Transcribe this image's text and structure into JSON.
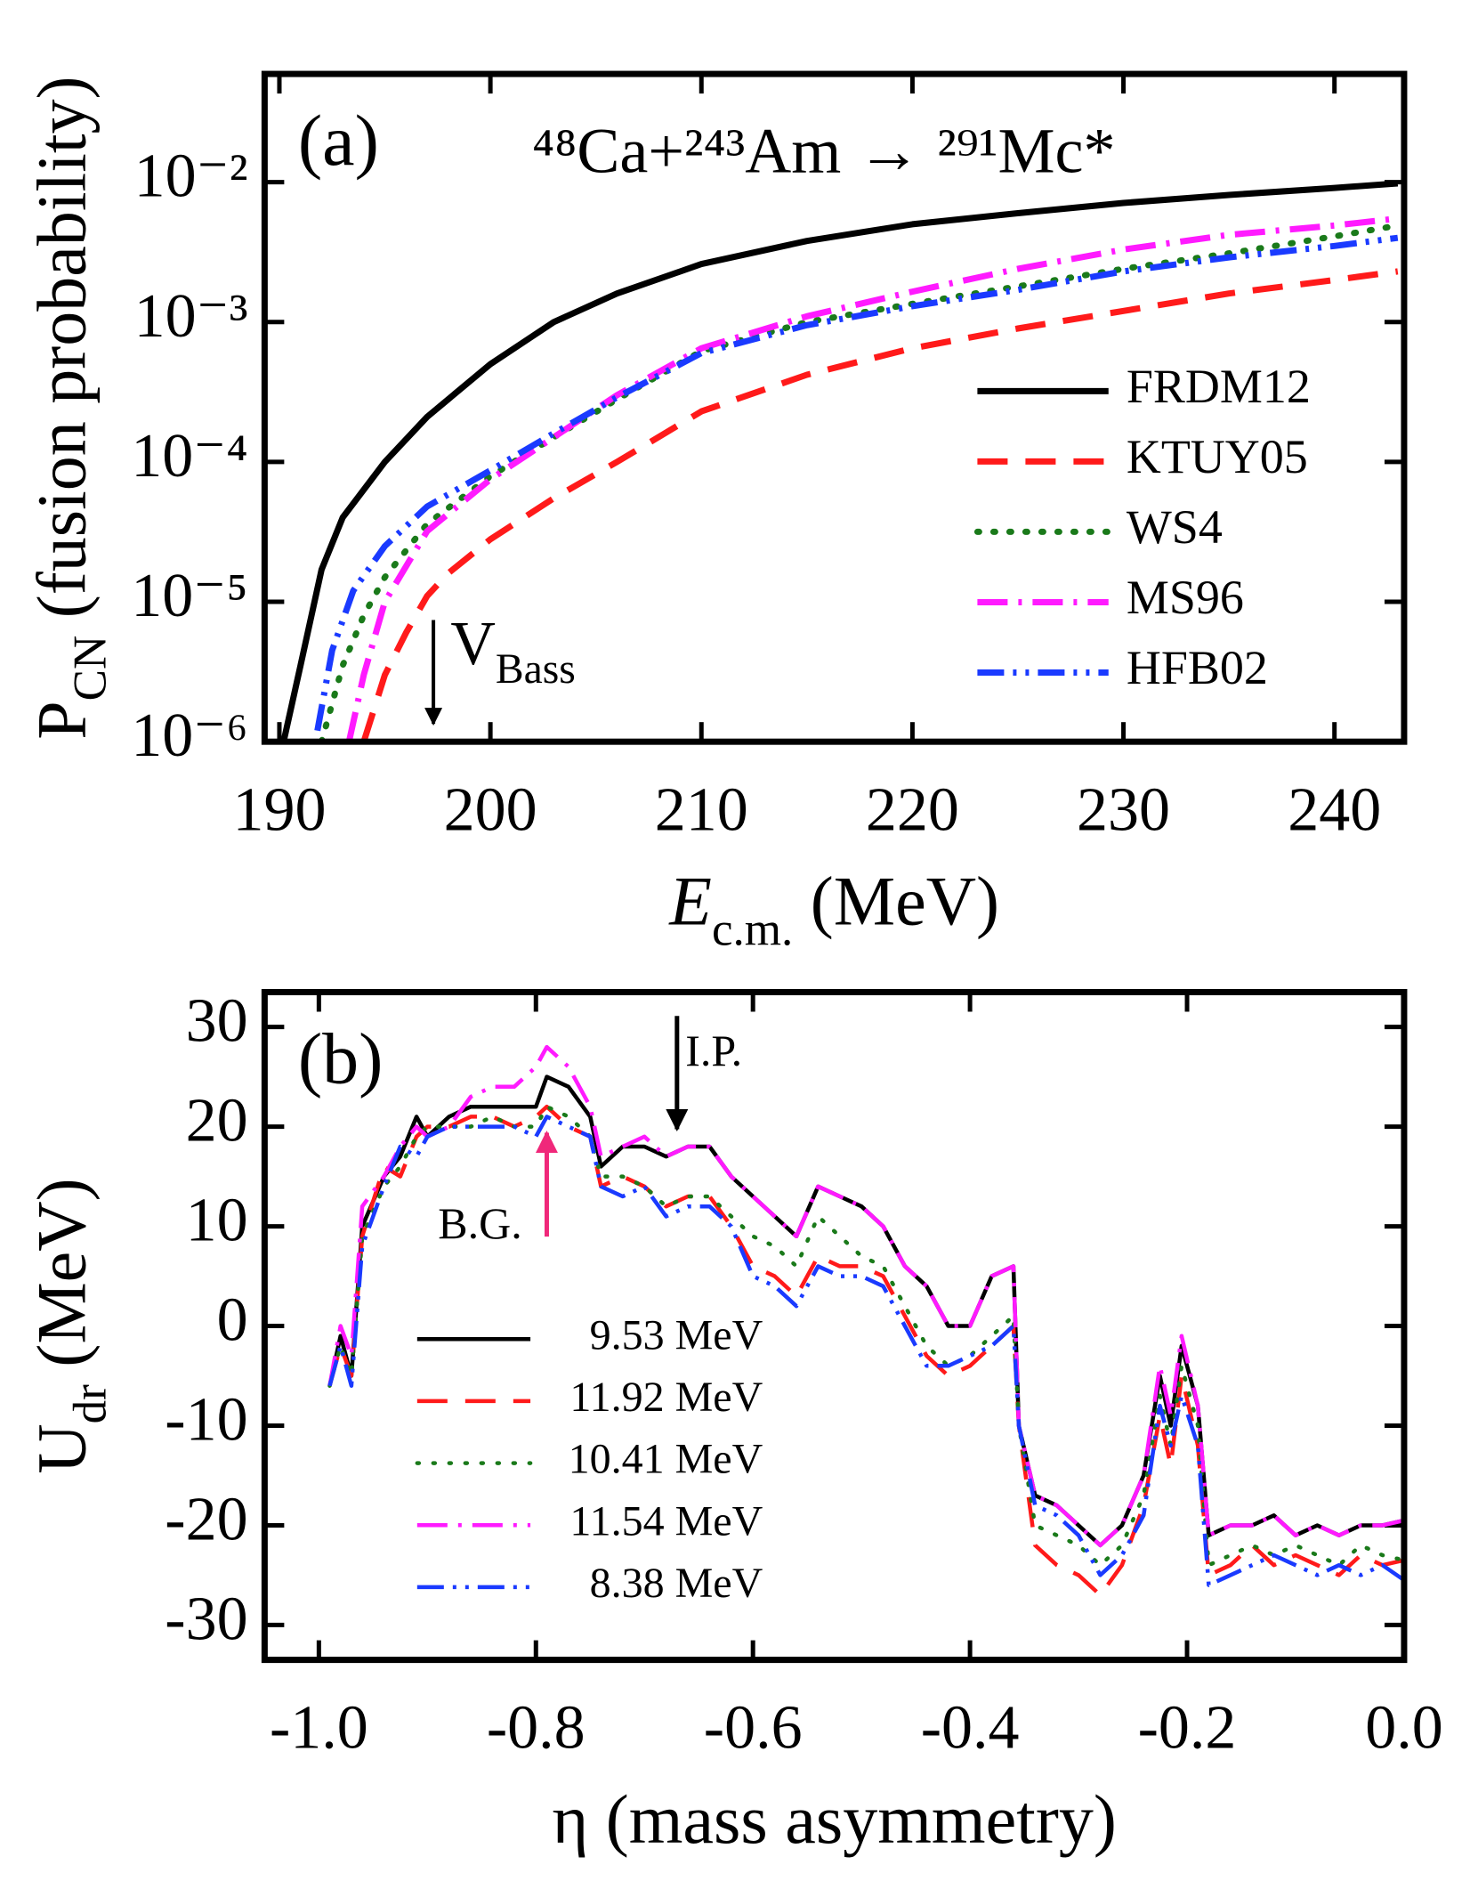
{
  "chart_data": [
    {
      "type": "line",
      "log_y": true,
      "panel_label": "(a)",
      "title": "⁴⁸Ca+²⁴³Am → ²⁹¹Mc*",
      "xlabel": [
        {
          "text": "E",
          "italic": true
        },
        {
          "text": "c.m.",
          "sub": true
        },
        {
          "text": " (MeV)"
        }
      ],
      "ylabel": [
        {
          "text": "P"
        },
        {
          "text": "CN",
          "sub": true
        },
        {
          "text": "  (fusion probability)"
        }
      ],
      "xlim": [
        189.3,
        243.3
      ],
      "xticks": [
        190,
        200,
        210,
        220,
        230,
        240
      ],
      "ylim": [
        1e-06,
        0.0594
      ],
      "yticks": [
        {
          "value": 1e-06,
          "label": "10⁻⁶"
        },
        {
          "value": 1e-05,
          "label": "10⁻⁵"
        },
        {
          "value": 0.0001,
          "label": "10⁻⁴"
        },
        {
          "value": 0.001,
          "label": "10⁻³"
        },
        {
          "value": 0.01,
          "label": "10⁻²"
        }
      ],
      "legend": "lower right",
      "annotations": [
        {
          "parts": [
            {
              "text": "V"
            },
            {
              "text": "Bass",
              "sub": true
            }
          ],
          "x": 197.3,
          "color": "#000000"
        }
      ],
      "series": [
        {
          "name": "FRDM12",
          "color": "#000000",
          "line_style": "solid",
          "x": [
            190.2,
            191,
            192,
            193,
            195,
            197,
            200,
            203,
            206,
            210,
            215,
            220,
            225,
            230,
            235,
            240,
            243
          ],
          "values": [
            1e-06,
            3.5e-06,
            1.7e-05,
            4e-05,
            0.0001,
            0.00021,
            0.0005,
            0.001,
            0.0016,
            0.0026,
            0.0038,
            0.005,
            0.006,
            0.0071,
            0.0081,
            0.0091,
            0.0098
          ]
        },
        {
          "name": "KTUY05",
          "color": "#ff1a1a",
          "line_style": "dashed",
          "x": [
            194,
            195,
            196,
            197,
            198,
            200,
            203,
            206,
            210,
            215,
            220,
            225,
            230,
            235,
            240,
            243
          ],
          "values": [
            1e-06,
            3e-06,
            6e-06,
            1.1e-05,
            1.6e-05,
            2.8e-05,
            5.5e-05,
            0.0001,
            0.00023,
            0.00042,
            0.00065,
            0.0009,
            0.0012,
            0.0016,
            0.002,
            0.0023
          ]
        },
        {
          "name": "WS4",
          "color": "#1a7a1a",
          "line_style": "dotted",
          "x": [
            192,
            193,
            194,
            195,
            197,
            200,
            203,
            206,
            210,
            215,
            220,
            225,
            230,
            235,
            240,
            243
          ],
          "values": [
            1e-06,
            3.5e-06,
            8e-06,
            1.5e-05,
            3.6e-05,
            7.9e-05,
            0.00015,
            0.00028,
            0.00062,
            0.001,
            0.00135,
            0.0018,
            0.0024,
            0.0031,
            0.0041,
            0.0049
          ]
        },
        {
          "name": "MS96",
          "color": "#ff1aff",
          "line_style": "dashdot",
          "x": [
            193.3,
            194,
            195,
            197,
            200,
            203,
            206,
            210,
            215,
            220,
            225,
            230,
            235,
            240,
            243
          ],
          "values": [
            1e-06,
            3e-06,
            1e-05,
            3.2e-05,
            7.5e-05,
            0.00015,
            0.0003,
            0.00065,
            0.0011,
            0.00165,
            0.0024,
            0.0033,
            0.0042,
            0.0049,
            0.0055
          ]
        },
        {
          "name": "HFB02",
          "color": "#1a3aff",
          "line_style": "dashdotdot",
          "x": [
            191.8,
            192.5,
            193.5,
            195,
            197,
            200,
            203,
            206,
            210,
            215,
            220,
            225,
            230,
            235,
            240,
            243
          ],
          "values": [
            1.2e-06,
            4.5e-06,
            1.2e-05,
            2.5e-05,
            4.8e-05,
            8.7e-05,
            0.00016,
            0.00029,
            0.0006,
            0.00095,
            0.0013,
            0.0017,
            0.0023,
            0.0029,
            0.0035,
            0.004
          ]
        }
      ]
    },
    {
      "type": "line",
      "panel_label": "(b)",
      "xlabel": [
        {
          "text": "η (mass asymmetry)"
        }
      ],
      "ylabel": [
        {
          "text": "U"
        },
        {
          "text": "dr",
          "sub": true
        },
        {
          "text": " (MeV)"
        }
      ],
      "xlim": [
        -1.05,
        0
      ],
      "xticks": [
        {
          "value": -1,
          "label": "-1.0"
        },
        -0.8,
        -0.6,
        -0.4,
        -0.2,
        {
          "value": 0,
          "label": "0.0"
        }
      ],
      "ylim": [
        -33.5,
        33.5
      ],
      "yticks": [
        -30,
        -20,
        -10,
        0,
        10,
        20,
        30
      ],
      "legend": "lower left",
      "annotations": [
        {
          "text": "I.P.",
          "x": -0.67,
          "color": "#000000"
        },
        {
          "text": "B.G.",
          "x": -0.79,
          "color": "#f0287a"
        }
      ],
      "x": [
        -0.99,
        -0.98,
        -0.97,
        -0.96,
        -0.94,
        -0.925,
        -0.91,
        -0.9,
        -0.88,
        -0.86,
        -0.84,
        -0.82,
        -0.8,
        -0.79,
        -0.77,
        -0.75,
        -0.74,
        -0.72,
        -0.7,
        -0.68,
        -0.66,
        -0.64,
        -0.62,
        -0.6,
        -0.58,
        -0.56,
        -0.54,
        -0.52,
        -0.5,
        -0.48,
        -0.46,
        -0.44,
        -0.42,
        -0.4,
        -0.38,
        -0.36,
        -0.355,
        -0.34,
        -0.32,
        -0.3,
        -0.28,
        -0.26,
        -0.24,
        -0.225,
        -0.215,
        -0.205,
        -0.19,
        -0.18,
        -0.16,
        -0.14,
        -0.12,
        -0.1,
        -0.08,
        -0.06,
        -0.04,
        -0.02,
        0
      ],
      "series": [
        {
          "name": "9.53 MeV",
          "color": "#000000",
          "line_style": "solid",
          "values": [
            -6,
            -1,
            -5,
            10,
            15,
            17,
            21,
            19,
            21,
            22,
            22,
            22,
            22,
            25,
            24,
            21,
            16,
            18,
            18,
            17,
            18,
            18,
            15,
            13,
            11,
            9,
            14,
            13,
            12,
            10,
            6,
            4,
            0,
            0,
            5,
            6,
            -10,
            -17,
            -18,
            -20,
            -22,
            -20,
            -15,
            -5,
            -10,
            -2,
            -8,
            -21,
            -20,
            -20,
            -19,
            -21,
            -20,
            -21,
            -20,
            -20,
            -19.5
          ]
        },
        {
          "name": "11.92 MeV",
          "color": "#ff1a1a",
          "line_style": "dashed",
          "values": [
            -6,
            -2,
            -5,
            9,
            16,
            15,
            19,
            20,
            20,
            21,
            21,
            20,
            21,
            22,
            20,
            19,
            14,
            15,
            14,
            12,
            13,
            13,
            10,
            6,
            5,
            3,
            7,
            6,
            6,
            5,
            1,
            -3,
            -5,
            -4,
            -2,
            0,
            -10,
            -22,
            -24,
            -25,
            -27,
            -24,
            -18,
            -9,
            -14,
            -5,
            -12,
            -25,
            -24,
            -22,
            -24,
            -23,
            -24,
            -25,
            -23,
            -24,
            -23.5
          ]
        },
        {
          "name": "10.41 MeV",
          "color": "#1a7a1a",
          "line_style": "dotted",
          "values": [
            -6,
            -2,
            -5,
            9,
            14,
            16,
            19,
            20,
            20,
            20,
            21,
            20,
            20,
            22,
            21,
            19,
            15,
            15,
            14,
            12,
            13,
            13,
            11,
            9,
            8,
            6,
            11,
            9,
            7,
            6,
            2,
            -2,
            -4,
            -3,
            -1,
            1,
            -10,
            -20,
            -21,
            -22,
            -24,
            -22,
            -17,
            -7,
            -12,
            -4,
            -10,
            -24,
            -23,
            -22,
            -23,
            -22,
            -23,
            -24,
            -22,
            -23,
            -23.5
          ]
        },
        {
          "name": "11.54 MeV",
          "color": "#ff1aff",
          "line_style": "dashdot",
          "values": [
            -6,
            0,
            -3,
            12,
            15,
            18,
            20,
            19,
            20,
            23,
            24,
            24,
            26,
            28,
            26,
            22,
            17,
            18,
            19,
            17,
            18,
            18,
            15,
            13,
            11,
            9,
            14,
            13,
            12,
            10,
            6,
            4,
            0,
            0,
            5,
            6,
            -10,
            -17,
            -18,
            -20,
            -22,
            -20,
            -15,
            -4,
            -9,
            -1,
            -8,
            -21,
            -20,
            -20,
            -19,
            -21,
            -20,
            -21,
            -20,
            -20,
            -19.5
          ]
        },
        {
          "name": "8.38 MeV",
          "color": "#1a3aff",
          "line_style": "dashdotdot",
          "values": [
            -6,
            -2,
            -6,
            8,
            14,
            18,
            17,
            19,
            20,
            20,
            20,
            20,
            19,
            21,
            20,
            19,
            14,
            13,
            14,
            11,
            12,
            12,
            10,
            5,
            4,
            2,
            6,
            5,
            5,
            4,
            0,
            -4,
            -4,
            -3,
            -2,
            0,
            -10,
            -18,
            -19,
            -21,
            -25,
            -23,
            -19,
            -8,
            -12,
            -7,
            -12,
            -26,
            -25,
            -24,
            -23,
            -24,
            -25,
            -24,
            -25,
            -24,
            -25.5
          ]
        }
      ]
    }
  ]
}
